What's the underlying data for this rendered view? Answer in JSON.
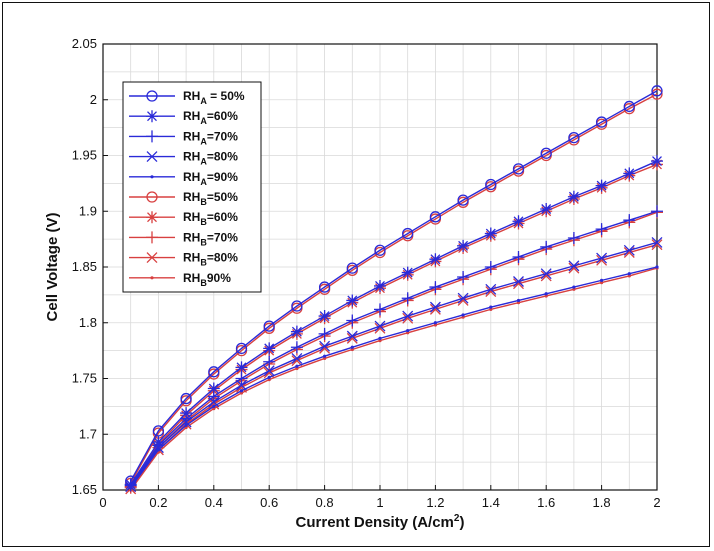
{
  "chart_data": {
    "type": "line",
    "xlabel_main": "Current Density (A/cm",
    "xlabel_sup": "2",
    "xlabel_close": ")",
    "ylabel": "Cell Voltage (V)",
    "xlim": [
      0,
      2
    ],
    "ylim": [
      1.65,
      2.05
    ],
    "grid": true,
    "legend_position": "top-left",
    "x": [
      0.1,
      0.2,
      0.3,
      0.4,
      0.5,
      0.6,
      0.7,
      0.8,
      0.9,
      1.0,
      1.1,
      1.2,
      1.3,
      1.4,
      1.5,
      1.6,
      1.7,
      1.8,
      1.9,
      2.0
    ],
    "x_ticks": [
      "0",
      "0.2",
      "0.4",
      "0.6",
      "0.8",
      "1",
      "1.2",
      "1.4",
      "1.6",
      "1.8",
      "2"
    ],
    "y_ticks": [
      "1.65",
      "1.7",
      "1.75",
      "1.8",
      "1.85",
      "1.9",
      "1.95",
      "2",
      "2.05"
    ],
    "series": [
      {
        "prefix": "RH",
        "sub": "A",
        "suffix": " = 50%",
        "color": "#2a2ad8",
        "marker": "circle",
        "values": [
          1.658,
          1.703,
          1.732,
          1.756,
          1.777,
          1.797,
          1.815,
          1.832,
          1.849,
          1.865,
          1.88,
          1.895,
          1.91,
          1.924,
          1.938,
          1.952,
          1.966,
          1.98,
          1.994,
          2.008
        ]
      },
      {
        "prefix": "RH",
        "sub": "A",
        "suffix": "=60%",
        "color": "#2a2ad8",
        "marker": "star",
        "values": [
          1.655,
          1.693,
          1.719,
          1.741,
          1.76,
          1.777,
          1.792,
          1.806,
          1.82,
          1.833,
          1.845,
          1.857,
          1.869,
          1.88,
          1.891,
          1.902,
          1.913,
          1.923,
          1.934,
          1.945
        ]
      },
      {
        "prefix": "RH",
        "sub": "A",
        "suffix": "=70%",
        "color": "#2a2ad8",
        "marker": "plus",
        "values": [
          1.654,
          1.69,
          1.714,
          1.734,
          1.75,
          1.765,
          1.778,
          1.79,
          1.802,
          1.812,
          1.822,
          1.832,
          1.841,
          1.85,
          1.859,
          1.868,
          1.876,
          1.884,
          1.892,
          1.9
        ]
      },
      {
        "prefix": "RH",
        "sub": "A",
        "suffix": "=80%",
        "color": "#2a2ad8",
        "marker": "x",
        "values": [
          1.653,
          1.688,
          1.711,
          1.729,
          1.744,
          1.757,
          1.768,
          1.779,
          1.788,
          1.797,
          1.806,
          1.814,
          1.822,
          1.83,
          1.837,
          1.844,
          1.851,
          1.858,
          1.865,
          1.872
        ]
      },
      {
        "prefix": "RH",
        "sub": "A",
        "suffix": "=90%",
        "color": "#2a2ad8",
        "marker": "dot",
        "values": [
          1.652,
          1.686,
          1.708,
          1.725,
          1.739,
          1.751,
          1.761,
          1.77,
          1.778,
          1.786,
          1.793,
          1.8,
          1.807,
          1.814,
          1.82,
          1.826,
          1.832,
          1.838,
          1.844,
          1.85
        ]
      },
      {
        "prefix": "RH",
        "sub": "B",
        "suffix": "=50%",
        "color": "#d84040",
        "marker": "circle",
        "values": [
          1.656,
          1.701,
          1.73,
          1.754,
          1.775,
          1.795,
          1.813,
          1.83,
          1.847,
          1.863,
          1.878,
          1.893,
          1.908,
          1.922,
          1.936,
          1.95,
          1.964,
          1.978,
          1.992,
          2.005
        ]
      },
      {
        "prefix": "RH",
        "sub": "B",
        "suffix": "=60%",
        "color": "#d84040",
        "marker": "star",
        "values": [
          1.653,
          1.691,
          1.717,
          1.739,
          1.758,
          1.775,
          1.79,
          1.804,
          1.818,
          1.831,
          1.843,
          1.855,
          1.867,
          1.878,
          1.889,
          1.9,
          1.911,
          1.921,
          1.932,
          1.942
        ]
      },
      {
        "prefix": "RH",
        "sub": "B",
        "suffix": "=70%",
        "color": "#d84040",
        "marker": "plus",
        "values": [
          1.652,
          1.688,
          1.712,
          1.732,
          1.748,
          1.763,
          1.776,
          1.788,
          1.8,
          1.81,
          1.82,
          1.83,
          1.839,
          1.848,
          1.857,
          1.866,
          1.874,
          1.882,
          1.89,
          1.899
        ]
      },
      {
        "prefix": "RH",
        "sub": "B",
        "suffix": "=80%",
        "color": "#d84040",
        "marker": "x",
        "values": [
          1.651,
          1.686,
          1.709,
          1.727,
          1.742,
          1.755,
          1.766,
          1.777,
          1.786,
          1.795,
          1.804,
          1.812,
          1.82,
          1.828,
          1.835,
          1.842,
          1.849,
          1.856,
          1.863,
          1.87
        ]
      },
      {
        "prefix": "RH",
        "sub": "B",
        "suffix": "90%",
        "color": "#d84040",
        "marker": "dot",
        "values": [
          1.65,
          1.684,
          1.706,
          1.723,
          1.737,
          1.749,
          1.759,
          1.768,
          1.776,
          1.784,
          1.791,
          1.798,
          1.805,
          1.812,
          1.818,
          1.824,
          1.83,
          1.836,
          1.842,
          1.849
        ]
      }
    ]
  }
}
